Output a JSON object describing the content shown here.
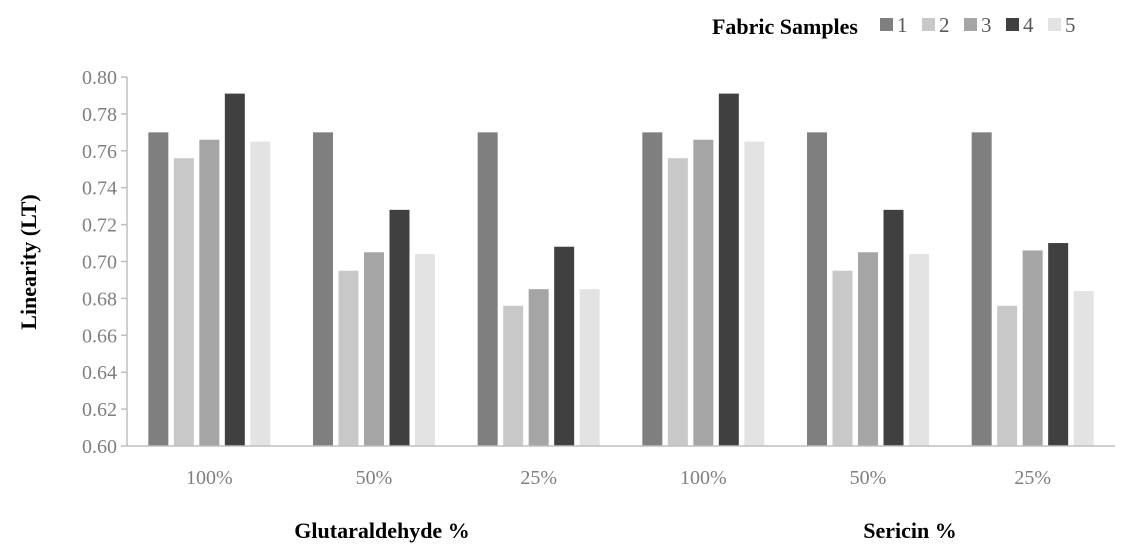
{
  "chart_data": {
    "type": "bar",
    "categories": [
      "100%",
      "50%",
      "25%",
      "100%",
      "50%",
      "25%"
    ],
    "groups": [
      "Glutaraldehyde %",
      "Sericin %"
    ],
    "legend_title": "Fabric Samples",
    "legend_position": "top-right",
    "ylabel": "Linearity (LT)",
    "xlabel": "",
    "ylim": [
      0.6,
      0.8
    ],
    "yticks": [
      "0.60",
      "0.62",
      "0.64",
      "0.66",
      "0.68",
      "0.70",
      "0.72",
      "0.74",
      "0.76",
      "0.78",
      "0.80"
    ],
    "grid": false,
    "series": [
      {
        "name": "1",
        "color": "#7f7f7f",
        "values": [
          0.77,
          0.77,
          0.77,
          0.77,
          0.77,
          0.77
        ]
      },
      {
        "name": "2",
        "color": "#c8c8c8",
        "values": [
          0.756,
          0.695,
          0.676,
          0.756,
          0.695,
          0.676
        ]
      },
      {
        "name": "3",
        "color": "#a5a5a5",
        "values": [
          0.766,
          0.705,
          0.685,
          0.766,
          0.705,
          0.706
        ]
      },
      {
        "name": "4",
        "color": "#404040",
        "values": [
          0.791,
          0.728,
          0.708,
          0.791,
          0.728,
          0.71
        ]
      },
      {
        "name": "5",
        "color": "#e3e3e3",
        "values": [
          0.765,
          0.704,
          0.685,
          0.765,
          0.704,
          0.684
        ]
      }
    ]
  }
}
